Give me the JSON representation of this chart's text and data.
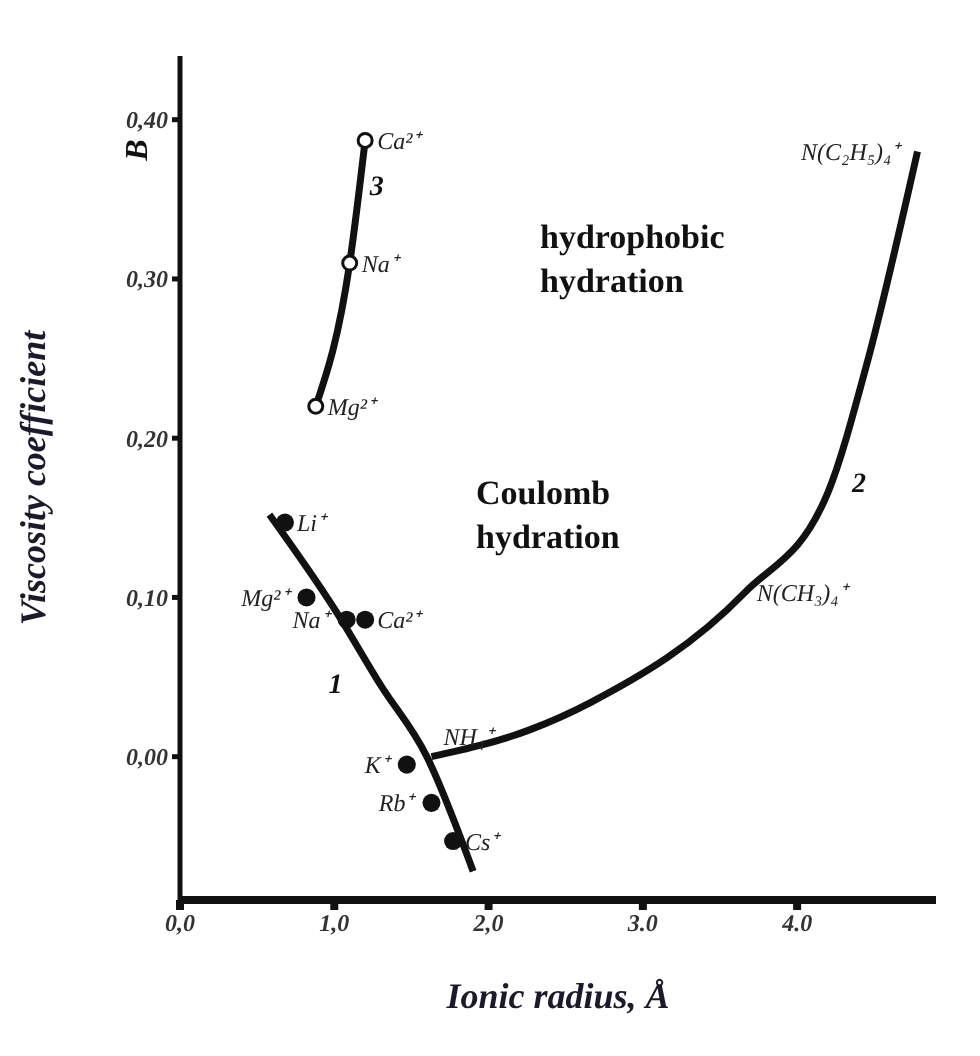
{
  "chart_data": {
    "type": "line",
    "xlabel": "Ionic radius, Å",
    "ylabel": "Viscosity coefficient",
    "xlim": [
      0,
      4.9
    ],
    "ylim": [
      -0.09,
      0.44
    ],
    "xticks": [
      {
        "value": 0,
        "label": "0,0"
      },
      {
        "value": 1,
        "label": "1,0"
      },
      {
        "value": 2,
        "label": "2,0"
      },
      {
        "value": 3,
        "label": "3.0"
      },
      {
        "value": 4,
        "label": "4.0"
      }
    ],
    "yticks": [
      {
        "value": 0,
        "label": "0,00"
      },
      {
        "value": 0.1,
        "label": "0,10"
      },
      {
        "value": 0.2,
        "label": "0,20"
      },
      {
        "value": 0.3,
        "label": "0,30"
      },
      {
        "value": 0.4,
        "label": "0,40"
      }
    ],
    "grid": false,
    "legend": false,
    "line_style": "solid",
    "series": [
      {
        "name": "3",
        "color": "#111111",
        "marker": "circle",
        "x": [
          0.88,
          1.1,
          1.2
        ],
        "values": [
          0.22,
          0.31,
          0.387
        ]
      },
      {
        "name": "1",
        "color": "#111111",
        "marker": "none",
        "x": [
          0.58,
          1.0,
          1.3,
          1.6,
          1.9
        ],
        "values": [
          0.152,
          0.093,
          0.045,
          0.0,
          -0.072
        ]
      },
      {
        "name": "2",
        "color": "#111111",
        "marker": "none",
        "x": [
          1.63,
          2.27,
          2.66,
          3.66,
          4.2,
          4.45,
          4.78
        ],
        "values": [
          0.0,
          0.017,
          0.034,
          0.103,
          0.166,
          0.246,
          0.38
        ]
      },
      {
        "type": "scatter",
        "color": "#111111",
        "marker": "circle",
        "x": [
          0.68,
          0.82,
          1.08,
          1.2,
          1.47,
          1.63,
          1.77
        ],
        "values": [
          0.147,
          0.1,
          0.086,
          0.086,
          -0.005,
          -0.029,
          -0.053
        ]
      }
    ],
    "annotations": [
      "hydrophobic hydration",
      "Coulomb hydration",
      "B",
      {
        "text": "Ca²⁺",
        "x": 1.2,
        "y": 0.387
      },
      {
        "text": "Na⁺",
        "x": 1.1,
        "y": 0.31
      },
      {
        "text": "Mg²⁺",
        "x": 0.88,
        "y": 0.22
      },
      {
        "text": "Li⁺",
        "x": 0.68,
        "y": 0.147
      },
      {
        "text": "Mg²⁺",
        "x": 0.82,
        "y": 0.1
      },
      {
        "text": "Na⁺",
        "x": 1.08,
        "y": 0.086
      },
      {
        "text": "Ca²⁺",
        "x": 1.2,
        "y": 0.086
      },
      {
        "text": "NH₄⁺",
        "x": 1.63,
        "y": 0.0
      },
      {
        "text": "K⁺",
        "x": 1.47,
        "y": -0.005
      },
      {
        "text": "Rb⁺",
        "x": 1.63,
        "y": -0.029
      },
      {
        "text": "Cs⁺",
        "x": 1.77,
        "y": -0.053
      },
      {
        "text": "N(CH₃)₄⁺",
        "x": 3.66,
        "y": 0.103
      },
      {
        "text": "N(C₂H₅)₄⁺",
        "x": 4.78,
        "y": 0.38
      }
    ]
  }
}
